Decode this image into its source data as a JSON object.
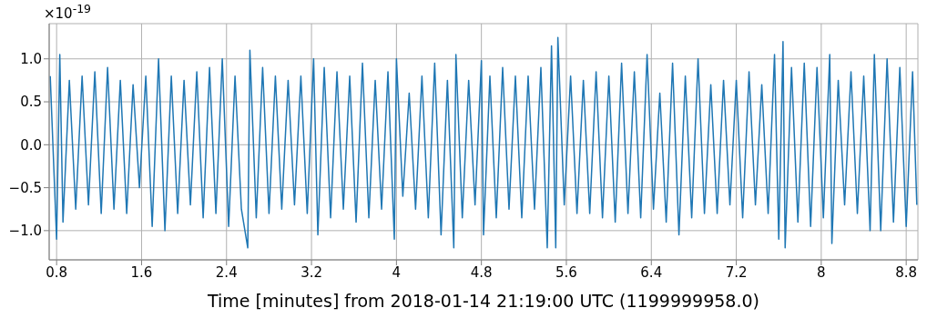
{
  "chart_data": {
    "type": "line",
    "xlabel": "Time [minutes] from 2018-01-14 21:19:00 UTC (1199999958.0)",
    "annotations": [
      "×10$^{-19}$"
    ],
    "x": [
      0.74,
      0.8,
      0.83,
      0.86,
      0.92,
      0.98,
      1.04,
      1.1,
      1.16,
      1.22,
      1.28,
      1.34,
      1.4,
      1.46,
      1.52,
      1.58,
      1.64,
      1.7,
      1.76,
      1.82,
      1.88,
      1.94,
      2.0,
      2.06,
      2.12,
      2.18,
      2.24,
      2.3,
      2.36,
      2.42,
      2.48,
      2.54,
      2.6,
      2.62,
      2.68,
      2.74,
      2.8,
      2.86,
      2.92,
      2.98,
      3.04,
      3.1,
      3.16,
      3.22,
      3.26,
      3.32,
      3.38,
      3.44,
      3.5,
      3.56,
      3.62,
      3.68,
      3.74,
      3.8,
      3.86,
      3.92,
      3.98,
      4.0,
      4.06,
      4.12,
      4.18,
      4.24,
      4.3,
      4.36,
      4.42,
      4.48,
      4.54,
      4.56,
      4.62,
      4.68,
      4.74,
      4.8,
      4.82,
      4.88,
      4.94,
      5.0,
      5.06,
      5.12,
      5.18,
      5.24,
      5.3,
      5.36,
      5.42,
      5.46,
      5.5,
      5.52,
      5.58,
      5.64,
      5.7,
      5.76,
      5.82,
      5.88,
      5.94,
      6.0,
      6.06,
      6.12,
      6.18,
      6.24,
      6.3,
      6.36,
      6.42,
      6.48,
      6.54,
      6.6,
      6.66,
      6.72,
      6.78,
      6.84,
      6.9,
      6.96,
      7.02,
      7.08,
      7.14,
      7.2,
      7.26,
      7.32,
      7.38,
      7.44,
      7.5,
      7.56,
      7.6,
      7.64,
      7.66,
      7.72,
      7.78,
      7.84,
      7.9,
      7.96,
      8.02,
      8.08,
      8.1,
      8.16,
      8.22,
      8.28,
      8.34,
      8.4,
      8.46,
      8.5,
      8.56,
      8.62,
      8.68,
      8.74,
      8.8,
      8.86,
      8.9
    ],
    "series": [
      {
        "color": "#1f77b4",
        "values": [
          0.8,
          -1.1,
          1.05,
          -0.9,
          0.75,
          -0.75,
          0.8,
          -0.7,
          0.85,
          -0.8,
          0.9,
          -0.75,
          0.75,
          -0.8,
          0.7,
          -0.5,
          0.8,
          -0.95,
          1.0,
          -1.0,
          0.8,
          -0.8,
          0.75,
          -0.7,
          0.85,
          -0.85,
          0.9,
          -0.8,
          1.0,
          -0.95,
          0.8,
          -0.75,
          -1.2,
          1.1,
          -0.85,
          0.9,
          -0.8,
          0.8,
          -0.75,
          0.75,
          -0.7,
          0.8,
          -0.8,
          1.0,
          -1.05,
          0.9,
          -0.85,
          0.85,
          -0.75,
          0.8,
          -0.9,
          0.95,
          -0.85,
          0.75,
          -0.75,
          0.85,
          -1.1,
          1.0,
          -0.6,
          0.6,
          -0.75,
          0.8,
          -0.85,
          0.95,
          -1.05,
          0.75,
          -1.2,
          1.05,
          -0.85,
          0.75,
          -0.7,
          0.98,
          -1.05,
          0.8,
          -0.85,
          0.9,
          -0.75,
          0.8,
          -0.85,
          0.8,
          -0.75,
          0.9,
          -1.2,
          1.15,
          -1.2,
          1.25,
          -0.7,
          0.8,
          -0.8,
          0.75,
          -0.8,
          0.85,
          -0.85,
          0.8,
          -0.9,
          0.95,
          -0.8,
          0.85,
          -0.85,
          1.05,
          -0.75,
          0.6,
          -0.9,
          0.95,
          -1.05,
          0.8,
          -0.85,
          1.0,
          -0.8,
          0.7,
          -0.8,
          0.75,
          -0.7,
          0.75,
          -0.85,
          0.85,
          -0.7,
          0.7,
          -0.8,
          1.05,
          -1.1,
          1.2,
          -1.2,
          0.9,
          -0.9,
          0.95,
          -0.95,
          0.9,
          -0.85,
          1.05,
          -1.15,
          0.75,
          -0.7,
          0.85,
          -0.8,
          0.8,
          -1.0,
          1.05,
          -1.0,
          1.0,
          -0.9,
          0.9,
          -0.95,
          0.85,
          -0.7
        ]
      }
    ],
    "xlim": [
      0.73,
      8.91
    ],
    "xticks": [
      0.8,
      1.6,
      2.4,
      3.2,
      4,
      4.8,
      5.6,
      6.4,
      7.2,
      8,
      8.8
    ],
    "ylim": [
      -1.34,
      1.41
    ],
    "yticks": [
      {
        "value": -1,
        "label": "−1.0"
      },
      {
        "value": -0.5,
        "label": "−0.5"
      },
      {
        "value": 0,
        "label": "0.0"
      },
      {
        "value": 0.5,
        "label": "0.5"
      },
      {
        "value": 1,
        "label": "1.0"
      }
    ],
    "grid": true,
    "marker": "none",
    "line_style": "solid"
  }
}
